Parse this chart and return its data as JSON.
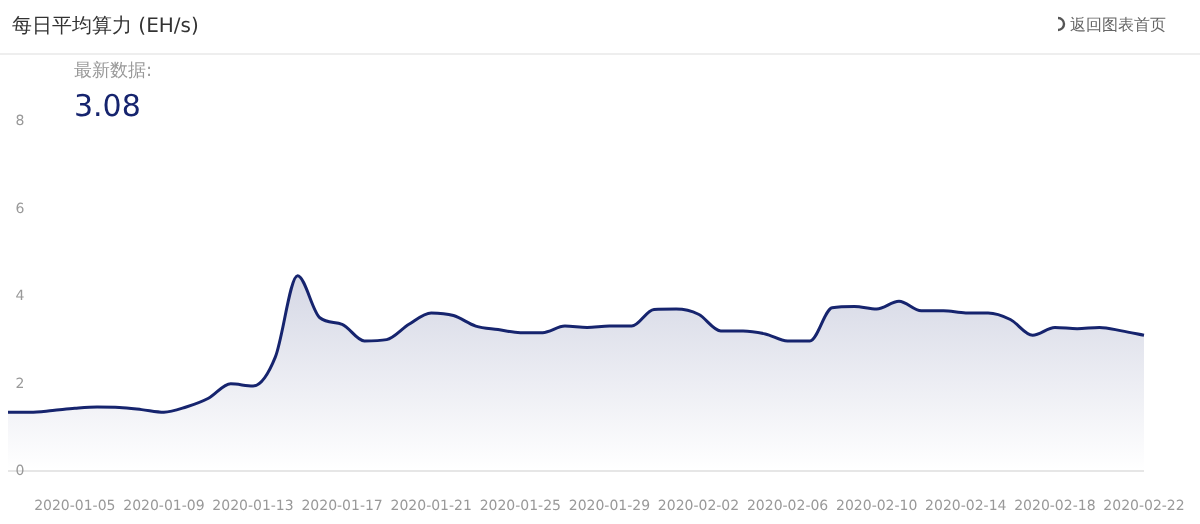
{
  "chart_data": {
    "type": "area",
    "title": "每日平均算力 (EH/s)",
    "annotations": [
      "返回图表首页",
      "最新数据:",
      "3.08"
    ],
    "x": [
      "2020-01-02",
      "2020-01-03",
      "2020-01-04",
      "2020-01-05",
      "2020-01-06",
      "2020-01-07",
      "2020-01-08",
      "2020-01-09",
      "2020-01-10",
      "2020-01-11",
      "2020-01-12",
      "2020-01-13",
      "2020-01-14",
      "2020-01-15",
      "2020-01-16",
      "2020-01-17",
      "2020-01-18",
      "2020-01-19",
      "2020-01-20",
      "2020-01-21",
      "2020-01-22",
      "2020-01-23",
      "2020-01-24",
      "2020-01-25",
      "2020-01-26",
      "2020-01-27",
      "2020-01-28",
      "2020-01-29",
      "2020-01-30",
      "2020-01-31",
      "2020-02-01",
      "2020-02-02",
      "2020-02-03",
      "2020-02-04",
      "2020-02-05",
      "2020-02-06",
      "2020-02-07",
      "2020-02-08",
      "2020-02-09",
      "2020-02-10",
      "2020-02-11",
      "2020-02-12",
      "2020-02-13",
      "2020-02-14",
      "2020-02-15",
      "2020-02-16",
      "2020-02-17",
      "2020-02-18",
      "2020-02-19",
      "2020-02-20",
      "2020-02-21",
      "2020-02-22"
    ],
    "series": [
      {
        "color": "#16246e",
        "values": [
          1.32,
          1.32,
          1.36,
          1.41,
          1.44,
          1.43,
          1.38,
          1.32,
          1.44,
          1.64,
          1.97,
          1.92,
          2.58,
          4.44,
          3.48,
          3.33,
          2.95,
          2.98,
          3.33,
          3.59,
          3.53,
          3.29,
          3.21,
          3.14,
          3.14,
          3.29,
          3.26,
          3.29,
          3.29,
          3.67,
          3.68,
          3.56,
          3.18,
          3.18,
          3.11,
          2.95,
          2.95,
          3.71,
          3.74,
          3.68,
          3.86,
          3.64,
          3.64,
          3.59,
          3.59,
          3.44,
          3.08,
          3.26,
          3.23,
          3.26,
          3.18,
          3.08
        ]
      }
    ],
    "xticks": [
      "2020-01-05",
      "2020-01-09",
      "2020-01-13",
      "2020-01-17",
      "2020-01-21",
      "2020-01-25",
      "2020-01-29",
      "2020-02-02",
      "2020-02-06",
      "2020-02-10",
      "2020-02-14",
      "2020-02-18",
      "2020-02-22"
    ],
    "xlim": [
      "2020-01-02",
      "2020-02-22"
    ],
    "ylim": [
      0,
      8
    ],
    "yticks": [
      0,
      2,
      4,
      6,
      8
    ],
    "grid": false
  }
}
